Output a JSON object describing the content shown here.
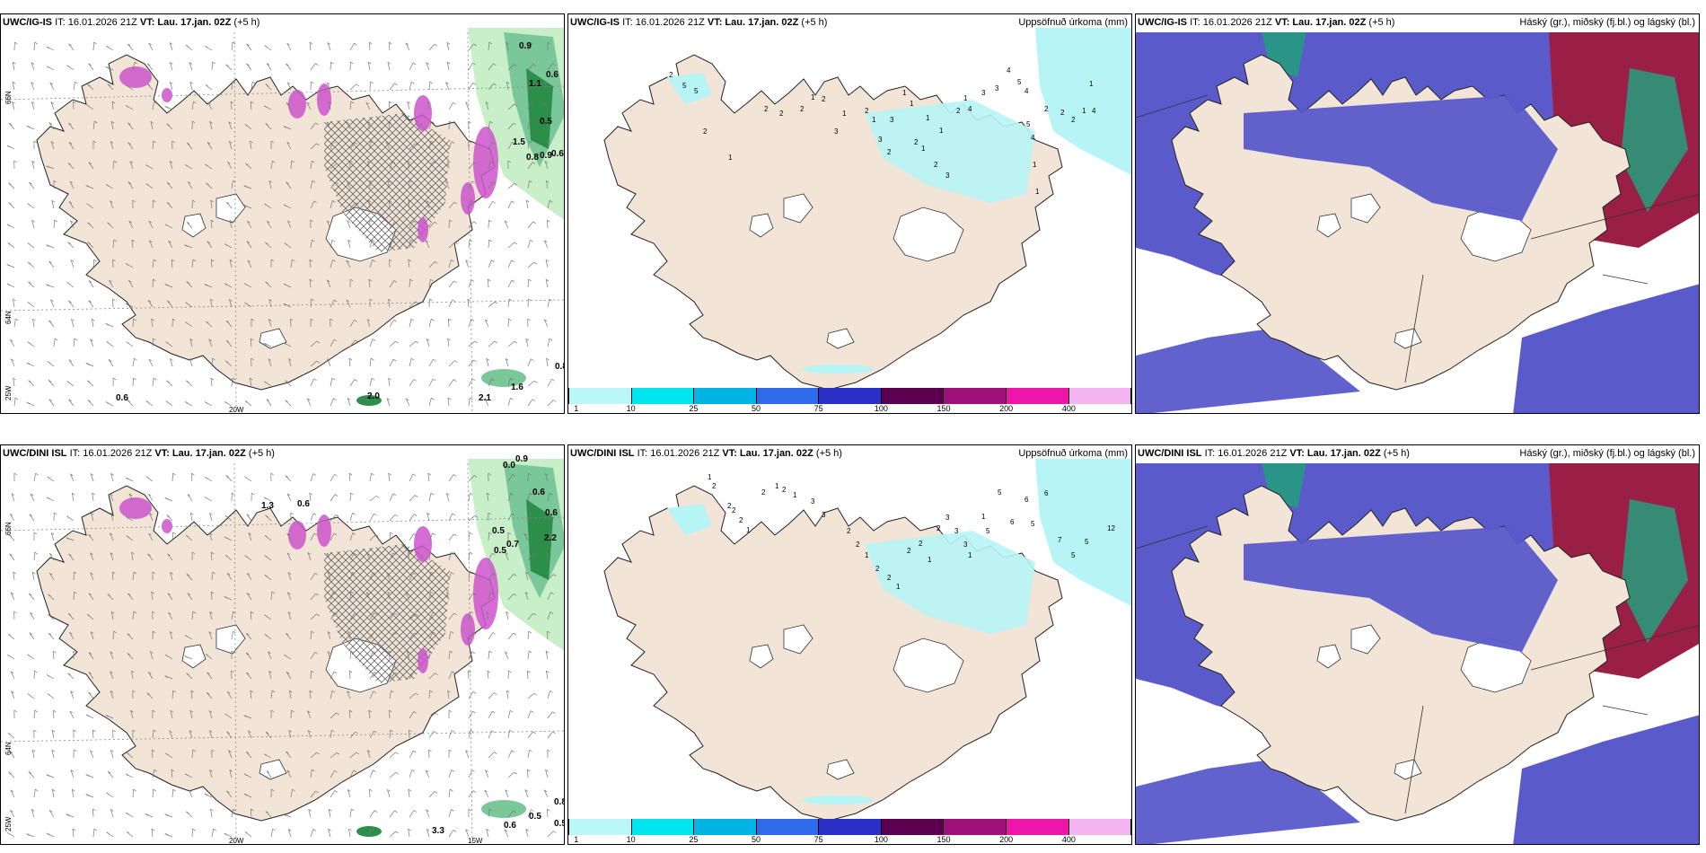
{
  "panels": [
    {
      "model": "UWC/IG-IS",
      "it": "IT: 16.01.2026 21Z",
      "vt_label": "VT:",
      "vt": "Lau. 17.jan. 02Z",
      "lead": "(+5 h)",
      "right_title": ""
    },
    {
      "model": "UWC/IG-IS",
      "it": "IT: 16.01.2026 21Z",
      "vt_label": "VT:",
      "vt": "Lau. 17.jan. 02Z",
      "lead": "(+5 h)",
      "right_title": "Uppsöfnuð úrkoma (mm)"
    },
    {
      "model": "UWC/IG-IS",
      "it": "IT: 16.01.2026 21Z",
      "vt_label": "VT:",
      "vt": "Lau. 17.jan. 02Z",
      "lead": "(+5 h)",
      "right_title": "Háský (gr.), miðský (fj.bl.) og lágský (bl.)"
    },
    {
      "model": "UWC/DINI ISL",
      "it": "IT: 16.01.2026 21Z",
      "vt_label": "VT:",
      "vt": "Lau. 17.jan. 02Z",
      "lead": "(+5 h)",
      "right_title": ""
    },
    {
      "model": "UWC/DINI ISL",
      "it": "IT: 16.01.2026 21Z",
      "vt_label": "VT:",
      "vt": "Lau. 17.jan. 02Z",
      "lead": "(+5 h)",
      "right_title": "Uppsöfnuð úrkoma (mm)"
    },
    {
      "model": "UWC/DINI ISL",
      "it": "IT: 16.01.2026 21Z",
      "vt_label": "VT:",
      "vt": "Lau. 17.jan. 02Z",
      "lead": "(+5 h)",
      "right_title": "Háský (gr.), miðský (fj.bl.) og lágský (bl.)"
    }
  ],
  "axis_labels": {
    "lat_66": "66N",
    "lat_64": "64N",
    "lon_25": "25W",
    "lon_20": "20W",
    "lon_15": "15W"
  },
  "colorbar": {
    "ticks": [
      "1",
      "10",
      "25",
      "50",
      "75",
      "100",
      "150",
      "200",
      "400"
    ],
    "colors": [
      "#b9f7f9",
      "#00e5ee",
      "#00b4e6",
      "#2e6bea",
      "#2a2fc8",
      "#5c0050",
      "#a0107a",
      "#ee16a8",
      "#f3b4f1"
    ]
  },
  "top_precip_labels": [
    "2",
    "5",
    "5",
    "2",
    "1",
    "2",
    "2",
    "2",
    "1",
    "2",
    "3",
    "1",
    "2",
    "1",
    "3",
    "2",
    "3",
    "1",
    "1",
    "2",
    "1",
    "1",
    "2",
    "1",
    "3",
    "2",
    "1",
    "4",
    "3",
    "3",
    "4",
    "5",
    "4",
    "5",
    "4",
    "1",
    "1",
    "2",
    "2",
    "2",
    "1",
    "1",
    "4"
  ],
  "bottom_precip_labels": [
    "1",
    "2",
    "2",
    "2",
    "2",
    "1",
    "2",
    "1",
    "2",
    "1",
    "3",
    "3",
    "2",
    "2",
    "1",
    "2",
    "2",
    "1",
    "2",
    "2",
    "1",
    "2",
    "3",
    "3",
    "3",
    "1",
    "1",
    "5",
    "5",
    "6",
    "6",
    "5",
    "6",
    "7",
    "5",
    "5",
    "12"
  ],
  "top_wind_labels": [
    "0.9",
    "0.6",
    "1.1",
    "0.5",
    "1.5",
    "0.8",
    "0.9",
    "0.6",
    "0.8",
    "0.6",
    "2.0",
    "2.1",
    "1.6"
  ],
  "bottom_wind_labels": [
    "0.9",
    "0.0",
    "0.6",
    "0.6",
    "2.2",
    "1.3",
    "0.6",
    "0.5",
    "0.7",
    "0.5",
    "0.8",
    "0.6",
    "3.3",
    "0.5",
    "0.5"
  ],
  "colors": {
    "land": "#f2e4d6",
    "precip_light": "#b7f4f6",
    "cloud_low": "#5a5acb",
    "cloud_high": "#9a1f47",
    "cloud_mid": "#239f7c",
    "green_light": "#c8efc8",
    "green_dark": "#2b8f4a",
    "magenta": "#cc55cc"
  }
}
